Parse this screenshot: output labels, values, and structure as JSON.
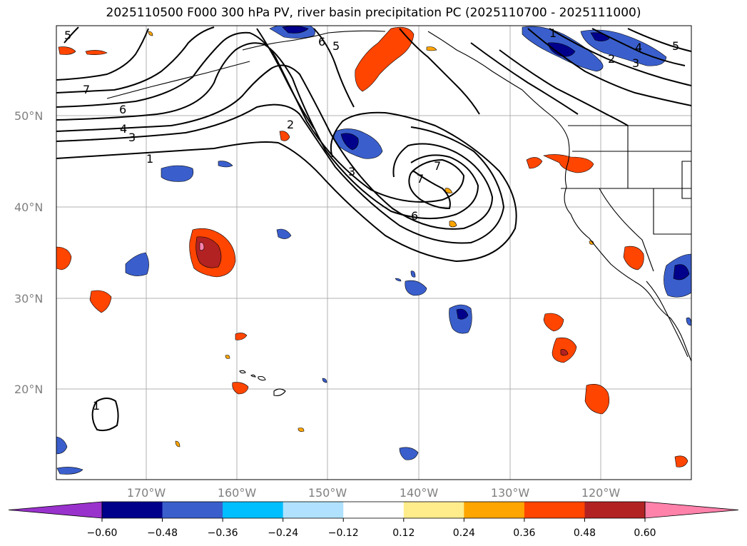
{
  "title": "2025110500 F000 300 hPa PV, river basin precipitation PC (2025110700 - 2025111000)",
  "lat_labels": [
    "50°N",
    "40°N",
    "30°N",
    "20°N"
  ],
  "lon_labels": [
    "170°W",
    "160°W",
    "150°W",
    "140°W",
    "130°W",
    "120°W"
  ],
  "pv_contour_labels": [
    "5",
    "7",
    "6",
    "4",
    "3",
    "1",
    "2",
    "6",
    "5",
    "7",
    "7",
    "3",
    "6",
    "1",
    "2",
    "3",
    "4",
    "5",
    "1"
  ],
  "colorbar": {
    "ticks": [
      "−0.60",
      "−0.48",
      "−0.36",
      "−0.24",
      "−0.12",
      "0.12",
      "0.24",
      "0.36",
      "0.48",
      "0.60"
    ],
    "colors": [
      "#9932cc",
      "#00008b",
      "#3a5fcd",
      "#00bfff",
      "#b0e2ff",
      "#ffffff",
      "#ffec8b",
      "#ffa500",
      "#ff4500",
      "#b22222",
      "#ff82ab"
    ]
  }
}
